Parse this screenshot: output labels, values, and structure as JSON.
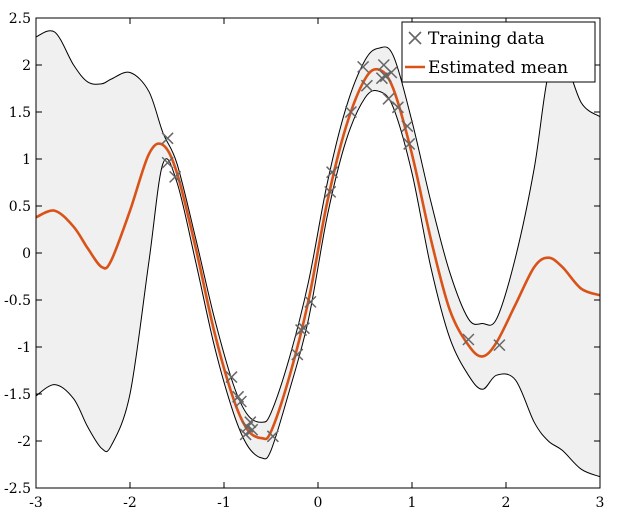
{
  "chart_data": {
    "type": "line",
    "title": "",
    "xlabel": "",
    "ylabel": "",
    "xlim": [
      -3,
      3
    ],
    "ylim": [
      -2.5,
      2.5
    ],
    "grid": false,
    "legend_position": "top-right",
    "x_ticks": [
      -3,
      -2,
      -1,
      0,
      1,
      2,
      3
    ],
    "x_tick_labels": [
      "-3",
      "-2",
      "-1",
      "0",
      "1",
      "2",
      "3"
    ],
    "y_ticks": [
      -2.5,
      -2,
      -1.5,
      -1,
      -0.5,
      0,
      0.5,
      1,
      1.5,
      2,
      2.5
    ],
    "y_tick_labels": [
      "-2.5",
      "-2",
      "-1.5",
      "-1",
      "-0.5",
      "0",
      "0.5",
      "1",
      "1.5",
      "2",
      "2.5"
    ],
    "legend": [
      {
        "label": "Training data",
        "marker": "x",
        "color": "#666666"
      },
      {
        "label": "Estimated mean",
        "marker": "line",
        "color": "#d95319"
      }
    ],
    "series": [
      {
        "name": "Training data",
        "kind": "scatter",
        "color": "#666666",
        "points": [
          [
            -1.6,
            1.22
          ],
          [
            -1.6,
            0.96
          ],
          [
            -1.52,
            0.81
          ],
          [
            -0.92,
            -1.32
          ],
          [
            -0.85,
            -1.53
          ],
          [
            -0.82,
            -1.58
          ],
          [
            -0.77,
            -1.93
          ],
          [
            -0.75,
            -1.85
          ],
          [
            -0.72,
            -1.8
          ],
          [
            -0.7,
            -1.88
          ],
          [
            -0.48,
            -1.95
          ],
          [
            -0.22,
            -1.08
          ],
          [
            -0.18,
            -0.82
          ],
          [
            -0.15,
            -0.8
          ],
          [
            -0.08,
            -0.52
          ],
          [
            0.13,
            0.65
          ],
          [
            0.15,
            0.86
          ],
          [
            0.35,
            1.5
          ],
          [
            0.48,
            1.98
          ],
          [
            0.52,
            1.78
          ],
          [
            0.68,
            1.86
          ],
          [
            0.7,
            2.0
          ],
          [
            0.72,
            1.88
          ],
          [
            0.75,
            1.64
          ],
          [
            0.78,
            1.92
          ],
          [
            0.85,
            1.55
          ],
          [
            0.95,
            1.35
          ],
          [
            0.97,
            1.16
          ],
          [
            1.6,
            -0.92
          ],
          [
            1.93,
            -0.98
          ]
        ]
      },
      {
        "name": "Estimated mean",
        "kind": "line",
        "color": "#d95319",
        "x": [
          -3.0,
          -2.8,
          -2.6,
          -2.45,
          -2.3,
          -2.2,
          -2.0,
          -1.8,
          -1.65,
          -1.5,
          -1.3,
          -1.1,
          -0.9,
          -0.75,
          -0.6,
          -0.5,
          -0.3,
          -0.1,
          0.1,
          0.3,
          0.5,
          0.65,
          0.8,
          1.0,
          1.2,
          1.4,
          1.6,
          1.75,
          1.9,
          2.1,
          2.3,
          2.45,
          2.6,
          2.8,
          3.0
        ],
        "y": [
          0.38,
          0.45,
          0.28,
          0.05,
          -0.15,
          -0.08,
          0.45,
          1.05,
          1.15,
          0.85,
          0.05,
          -0.85,
          -1.55,
          -1.88,
          -1.97,
          -1.9,
          -1.3,
          -0.5,
          0.55,
          1.35,
          1.85,
          1.95,
          1.75,
          1.05,
          0.15,
          -0.6,
          -0.98,
          -1.1,
          -0.95,
          -0.55,
          -0.15,
          -0.05,
          -0.15,
          -0.38,
          -0.45
        ]
      },
      {
        "name": "",
        "kind": "band",
        "color": "#f0f0f0",
        "stroke": "#000000",
        "x": [
          -3.0,
          -2.8,
          -2.6,
          -2.45,
          -2.3,
          -2.2,
          -2.0,
          -1.8,
          -1.65,
          -1.5,
          -1.3,
          -1.1,
          -0.9,
          -0.75,
          -0.6,
          -0.5,
          -0.3,
          -0.1,
          0.1,
          0.3,
          0.5,
          0.65,
          0.8,
          1.0,
          1.2,
          1.4,
          1.6,
          1.75,
          1.9,
          2.1,
          2.3,
          2.45,
          2.6,
          2.8,
          3.0
        ],
        "upper": [
          2.3,
          2.35,
          2.0,
          1.82,
          1.8,
          1.85,
          1.92,
          1.72,
          1.28,
          0.95,
          0.15,
          -0.7,
          -1.4,
          -1.72,
          -1.8,
          -1.7,
          -1.1,
          -0.3,
          0.75,
          1.55,
          2.05,
          2.18,
          2.1,
          1.4,
          0.55,
          -0.2,
          -0.7,
          -0.75,
          -0.7,
          -0.05,
          0.9,
          1.9,
          2.1,
          1.6,
          1.45
        ],
        "lower": [
          -1.52,
          -1.4,
          -1.55,
          -1.85,
          -2.08,
          -2.05,
          -1.5,
          -0.1,
          0.95,
          0.75,
          -0.1,
          -1.0,
          -1.7,
          -2.05,
          -2.18,
          -2.1,
          -1.45,
          -0.7,
          0.4,
          1.2,
          1.65,
          1.72,
          1.55,
          0.85,
          -0.15,
          -0.9,
          -1.3,
          -1.45,
          -1.3,
          -1.35,
          -1.8,
          -2.0,
          -2.1,
          -2.3,
          -2.38
        ]
      }
    ]
  }
}
